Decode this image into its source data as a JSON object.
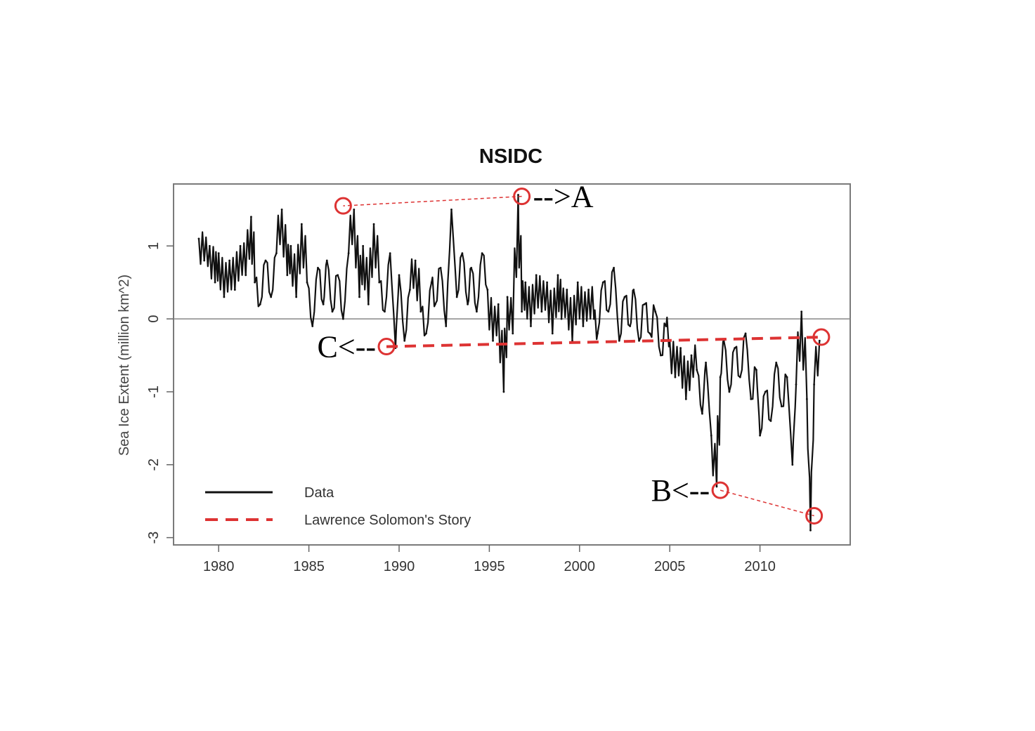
{
  "chart_data": {
    "type": "line",
    "title": "NSIDC",
    "xlabel": "",
    "ylabel": "Sea Ice Extent (million km^2)",
    "xlim": [
      1977.5,
      2015.0
    ],
    "ylim": [
      -3.1,
      1.85
    ],
    "x_ticks": [
      1980,
      1985,
      1990,
      1995,
      2000,
      2005,
      2010
    ],
    "y_ticks": [
      1,
      0,
      -1,
      -2,
      -3
    ],
    "x_tick_labels": [
      "1980",
      "1985",
      "1990",
      "1995",
      "2000",
      "2005",
      "2010"
    ],
    "y_tick_labels": [
      "1",
      "0",
      "-1",
      "-2",
      "-3"
    ],
    "reference_line_y": 0,
    "grid": false,
    "legend_position": "bottom-left",
    "series": [
      {
        "name": "Data",
        "color": "#111111",
        "style": "solid",
        "x": [
          1978.9,
          1979.2,
          1979.5,
          1979.8,
          1980.0,
          1980.3,
          1980.6,
          1980.9,
          1981.2,
          1981.5,
          1981.8,
          1982.0,
          1982.3,
          1982.6,
          1982.9,
          1983.2,
          1983.5,
          1983.8,
          1984.0,
          1984.3,
          1984.6,
          1984.9,
          1985.2,
          1985.5,
          1985.8,
          1986.0,
          1986.3,
          1986.6,
          1986.9,
          1987.2,
          1987.5,
          1987.8,
          1988.0,
          1988.3,
          1988.6,
          1988.9,
          1989.2,
          1989.5,
          1989.8,
          1990.0,
          1990.3,
          1990.6,
          1990.9,
          1991.2,
          1991.5,
          1991.8,
          1992.0,
          1992.3,
          1992.6,
          1992.9,
          1993.2,
          1993.5,
          1993.8,
          1994.0,
          1994.3,
          1994.6,
          1994.9,
          1995.2,
          1995.5,
          1995.8,
          1996.0,
          1996.3,
          1996.6,
          1996.8,
          1997.0,
          1997.3,
          1997.6,
          1997.9,
          1998.2,
          1998.5,
          1998.8,
          1999.0,
          1999.3,
          1999.6,
          1999.9,
          2000.2,
          2000.5,
          2000.8,
          2001.0,
          2001.3,
          2001.6,
          2001.9,
          2002.2,
          2002.5,
          2002.8,
          2003.0,
          2003.3,
          2003.6,
          2003.9,
          2004.2,
          2004.5,
          2004.8,
          2005.0,
          2005.3,
          2005.6,
          2005.9,
          2006.2,
          2006.5,
          2006.8,
          2007.0,
          2007.3,
          2007.6,
          2007.8,
          2008.0,
          2008.3,
          2008.6,
          2008.9,
          2009.2,
          2009.5,
          2009.8,
          2010.0,
          2010.3,
          2010.6,
          2010.9,
          2011.2,
          2011.5,
          2011.8,
          2012.0,
          2012.3,
          2012.6,
          2012.8,
          2013.0,
          2013.3
        ],
        "y": [
          1.1,
          0.8,
          1.0,
          0.5,
          0.9,
          0.3,
          0.8,
          0.4,
          1.0,
          0.6,
          1.4,
          0.5,
          0.2,
          0.8,
          0.3,
          0.9,
          1.5,
          0.6,
          1.0,
          0.3,
          1.3,
          0.5,
          -0.1,
          0.7,
          0.2,
          0.8,
          0.1,
          0.6,
          0.0,
          0.9,
          1.5,
          0.3,
          1.0,
          0.2,
          1.3,
          0.5,
          0.1,
          0.9,
          -0.4,
          0.6,
          -0.3,
          0.4,
          0.8,
          0.1,
          -0.2,
          0.5,
          0.2,
          0.7,
          -0.1,
          1.5,
          0.3,
          0.9,
          0.2,
          0.7,
          0.1,
          0.9,
          0.4,
          -0.3,
          0.2,
          -1.0,
          0.3,
          -0.2,
          1.7,
          0.1,
          0.5,
          -0.1,
          0.6,
          0.1,
          0.5,
          -0.2,
          0.6,
          0.0,
          0.4,
          -0.3,
          0.5,
          -0.1,
          0.4,
          0.0,
          -0.2,
          0.5,
          0.1,
          0.7,
          -0.3,
          0.3,
          -0.1,
          0.4,
          -0.3,
          0.2,
          -0.2,
          0.1,
          -0.5,
          -0.1,
          -0.3,
          -0.8,
          -0.4,
          -1.1,
          -0.5,
          -0.7,
          -1.3,
          -0.6,
          -1.6,
          -2.3,
          -0.8,
          -0.3,
          -1.0,
          -0.4,
          -0.8,
          -0.2,
          -1.1,
          -0.7,
          -1.6,
          -1.0,
          -1.4,
          -0.6,
          -1.2,
          -0.8,
          -2.0,
          -0.9,
          0.1,
          -1.1,
          -2.9,
          -0.9,
          -0.3
        ],
        "stroke_width": 2.2
      },
      {
        "name": "Lawrence Solomon's Story",
        "color": "#dd3333",
        "style": "dashed",
        "x": [
          1989.3,
          2013.4
        ],
        "y": [
          -0.38,
          -0.25
        ],
        "stroke_width": 4
      }
    ],
    "annotations": [
      {
        "label": "A",
        "point": [
          1996.8,
          1.68
        ],
        "paired_point": [
          1986.9,
          1.55
        ],
        "arrow_text": "-->A",
        "side": "right",
        "pair_line_color": "#dd3333"
      },
      {
        "label": "B",
        "point": [
          2007.8,
          -2.35
        ],
        "paired_point": [
          2013.0,
          -2.7
        ],
        "arrow_text": "B<--",
        "side": "left",
        "pair_line_color": "#dd3333"
      },
      {
        "label": "C",
        "point": [
          1989.3,
          -0.38
        ],
        "arrow_text": "C<--",
        "side": "left"
      },
      {
        "label": "",
        "point": [
          2013.4,
          -0.25
        ]
      }
    ]
  }
}
